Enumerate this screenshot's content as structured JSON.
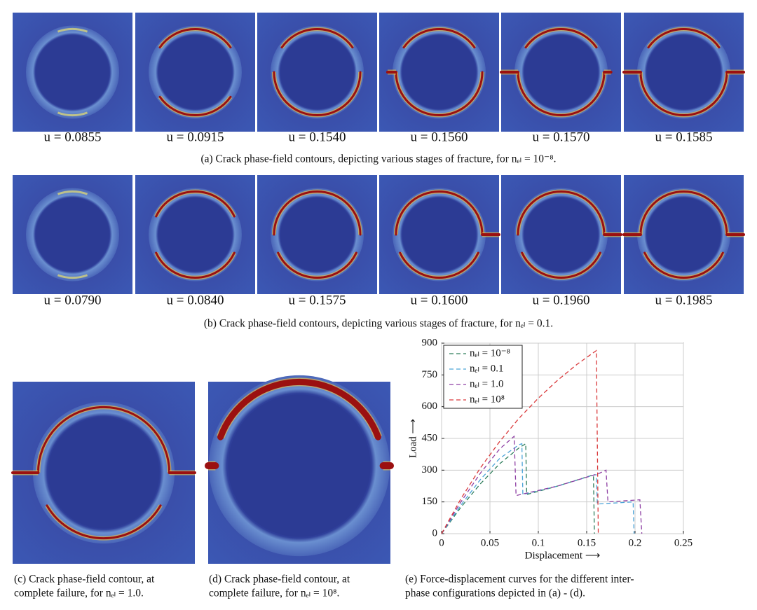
{
  "row_a": {
    "labels": [
      "u = 0.0855",
      "u = 0.0915",
      "u = 0.1540",
      "u = 0.1560",
      "u = 0.1570",
      "u = 0.1585"
    ],
    "caption": "(a) Crack phase-field contours, depicting various stages of fracture, for nₑₗ = 10⁻⁸."
  },
  "row_b": {
    "labels": [
      "u = 0.0790",
      "u = 0.0840",
      "u = 0.1575",
      "u = 0.1600",
      "u = 0.1960",
      "u = 0.1985"
    ],
    "caption": "(b) Crack phase-field contours, depicting various stages of fracture, for nₑₗ = 0.1."
  },
  "panel_c": {
    "caption": [
      "(c) Crack phase-field contour, at",
      "complete failure, for nₑₗ = 1.0."
    ]
  },
  "panel_d": {
    "caption": [
      "(d) Crack phase-field contour, at",
      "complete failure, for nₑₗ = 10⁸."
    ]
  },
  "panel_e": {
    "caption": [
      "(e) Force-displacement curves for the different inter-",
      "phase configurations depicted in (a) - (d)."
    ]
  },
  "chart_data": {
    "type": "line",
    "xlabel": "Displacement ⟶",
    "ylabel": "Load ⟶",
    "xlim": [
      0,
      0.25
    ],
    "ylim": [
      0,
      900
    ],
    "xticks": [
      0,
      0.05,
      0.1,
      0.15,
      0.2,
      0.25
    ],
    "yticks": [
      0,
      150,
      300,
      450,
      600,
      750,
      900
    ],
    "grid": true,
    "legend": "upper left",
    "linestyle": "dashed",
    "series": [
      {
        "name": "nₑₗ = 10⁻⁸",
        "color": "#2e7d5b",
        "x": [
          0,
          0.02,
          0.04,
          0.06,
          0.08,
          0.087,
          0.088,
          0.12,
          0.155,
          0.157,
          0.158
        ],
        "values": [
          0,
          125,
          235,
          330,
          405,
          425,
          185,
          225,
          275,
          275,
          0
        ]
      },
      {
        "name": "nₑₗ = 0.1",
        "color": "#4ba3d8",
        "x": [
          0,
          0.02,
          0.04,
          0.06,
          0.08,
          0.083,
          0.084,
          0.12,
          0.158,
          0.16,
          0.161,
          0.198,
          0.199
        ],
        "values": [
          0,
          135,
          255,
          355,
          420,
          425,
          185,
          225,
          278,
          278,
          140,
          150,
          0
        ]
      },
      {
        "name": "nₑₗ = 1.0",
        "color": "#8e3fa3",
        "x": [
          0,
          0.02,
          0.04,
          0.06,
          0.075,
          0.077,
          0.12,
          0.163,
          0.17,
          0.172,
          0.205,
          0.207
        ],
        "values": [
          0,
          150,
          285,
          400,
          460,
          180,
          225,
          285,
          300,
          150,
          160,
          0
        ]
      },
      {
        "name": "nₑₗ = 10⁸",
        "color": "#d9383a",
        "x": [
          0,
          0.02,
          0.04,
          0.06,
          0.08,
          0.1,
          0.12,
          0.14,
          0.16,
          0.162
        ],
        "values": [
          0,
          165,
          310,
          435,
          545,
          640,
          725,
          800,
          865,
          0
        ]
      }
    ]
  }
}
